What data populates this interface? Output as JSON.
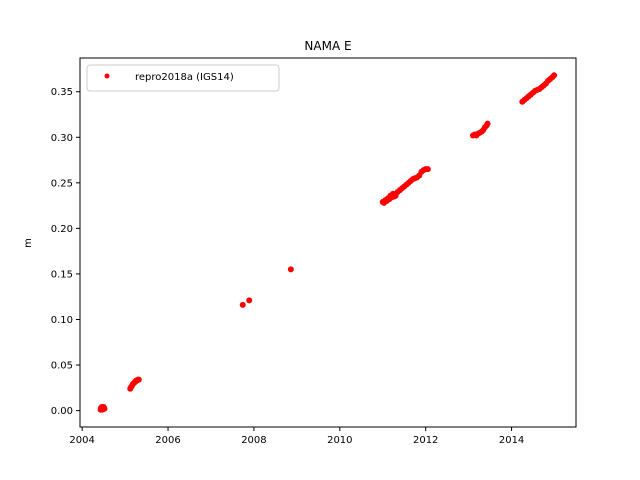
{
  "chart_data": {
    "type": "scatter",
    "title": "NAMA E",
    "xlabel": "",
    "ylabel": "m",
    "xlim": [
      2003.95,
      2015.5
    ],
    "ylim": [
      -0.018,
      0.387
    ],
    "xticks": [
      2004,
      2006,
      2008,
      2010,
      2012,
      2014
    ],
    "xtick_labels": [
      "2004",
      "2006",
      "2008",
      "2010",
      "2012",
      "2014"
    ],
    "yticks": [
      0.0,
      0.05,
      0.1,
      0.15,
      0.2,
      0.25,
      0.3,
      0.35
    ],
    "ytick_labels": [
      "0.00",
      "0.05",
      "0.10",
      "0.15",
      "0.20",
      "0.25",
      "0.30",
      "0.35"
    ],
    "grid": false,
    "legend_position": "top-left",
    "series": [
      {
        "name": "repro2018a (IGS14)",
        "color": "#ff0000",
        "marker": "circle",
        "points": [
          [
            2004.43,
            0.001
          ],
          [
            2004.44,
            0.003
          ],
          [
            2004.45,
            0.002
          ],
          [
            2004.46,
            0.004
          ],
          [
            2004.47,
            0.001
          ],
          [
            2004.48,
            0.003
          ],
          [
            2004.49,
            0.002
          ],
          [
            2004.5,
            0.004
          ],
          [
            2004.51,
            0.003
          ],
          [
            2004.52,
            0.002
          ],
          [
            2005.12,
            0.024
          ],
          [
            2005.14,
            0.026
          ],
          [
            2005.16,
            0.027
          ],
          [
            2005.18,
            0.029
          ],
          [
            2005.2,
            0.03
          ],
          [
            2005.22,
            0.031
          ],
          [
            2005.24,
            0.032
          ],
          [
            2005.26,
            0.033
          ],
          [
            2005.28,
            0.033
          ],
          [
            2005.3,
            0.034
          ],
          [
            2005.32,
            0.034
          ],
          [
            2007.74,
            0.116
          ],
          [
            2007.89,
            0.121
          ],
          [
            2008.86,
            0.155
          ],
          [
            2011.0,
            0.229
          ],
          [
            2011.03,
            0.228
          ],
          [
            2011.06,
            0.231
          ],
          [
            2011.09,
            0.23
          ],
          [
            2011.12,
            0.233
          ],
          [
            2011.15,
            0.232
          ],
          [
            2011.18,
            0.236
          ],
          [
            2011.21,
            0.234
          ],
          [
            2011.24,
            0.238
          ],
          [
            2011.27,
            0.235
          ],
          [
            2011.3,
            0.236
          ],
          [
            2011.35,
            0.24
          ],
          [
            2011.4,
            0.242
          ],
          [
            2011.45,
            0.244
          ],
          [
            2011.5,
            0.246
          ],
          [
            2011.55,
            0.248
          ],
          [
            2011.6,
            0.25
          ],
          [
            2011.65,
            0.252
          ],
          [
            2011.7,
            0.254
          ],
          [
            2011.75,
            0.255
          ],
          [
            2011.8,
            0.256
          ],
          [
            2011.85,
            0.258
          ],
          [
            2011.9,
            0.262
          ],
          [
            2011.95,
            0.264
          ],
          [
            2012.0,
            0.265
          ],
          [
            2012.05,
            0.265
          ],
          [
            2013.1,
            0.302
          ],
          [
            2013.14,
            0.303
          ],
          [
            2013.18,
            0.302
          ],
          [
            2013.22,
            0.304
          ],
          [
            2013.26,
            0.305
          ],
          [
            2013.3,
            0.306
          ],
          [
            2013.34,
            0.308
          ],
          [
            2013.38,
            0.311
          ],
          [
            2013.42,
            0.313
          ],
          [
            2013.44,
            0.315
          ],
          [
            2014.25,
            0.339
          ],
          [
            2014.3,
            0.341
          ],
          [
            2014.35,
            0.343
          ],
          [
            2014.4,
            0.345
          ],
          [
            2014.45,
            0.347
          ],
          [
            2014.5,
            0.349
          ],
          [
            2014.55,
            0.351
          ],
          [
            2014.6,
            0.352
          ],
          [
            2014.65,
            0.353
          ],
          [
            2014.7,
            0.355
          ],
          [
            2014.75,
            0.357
          ],
          [
            2014.8,
            0.359
          ],
          [
            2014.85,
            0.362
          ],
          [
            2014.9,
            0.364
          ],
          [
            2014.95,
            0.366
          ],
          [
            2014.99,
            0.368
          ]
        ]
      }
    ]
  }
}
